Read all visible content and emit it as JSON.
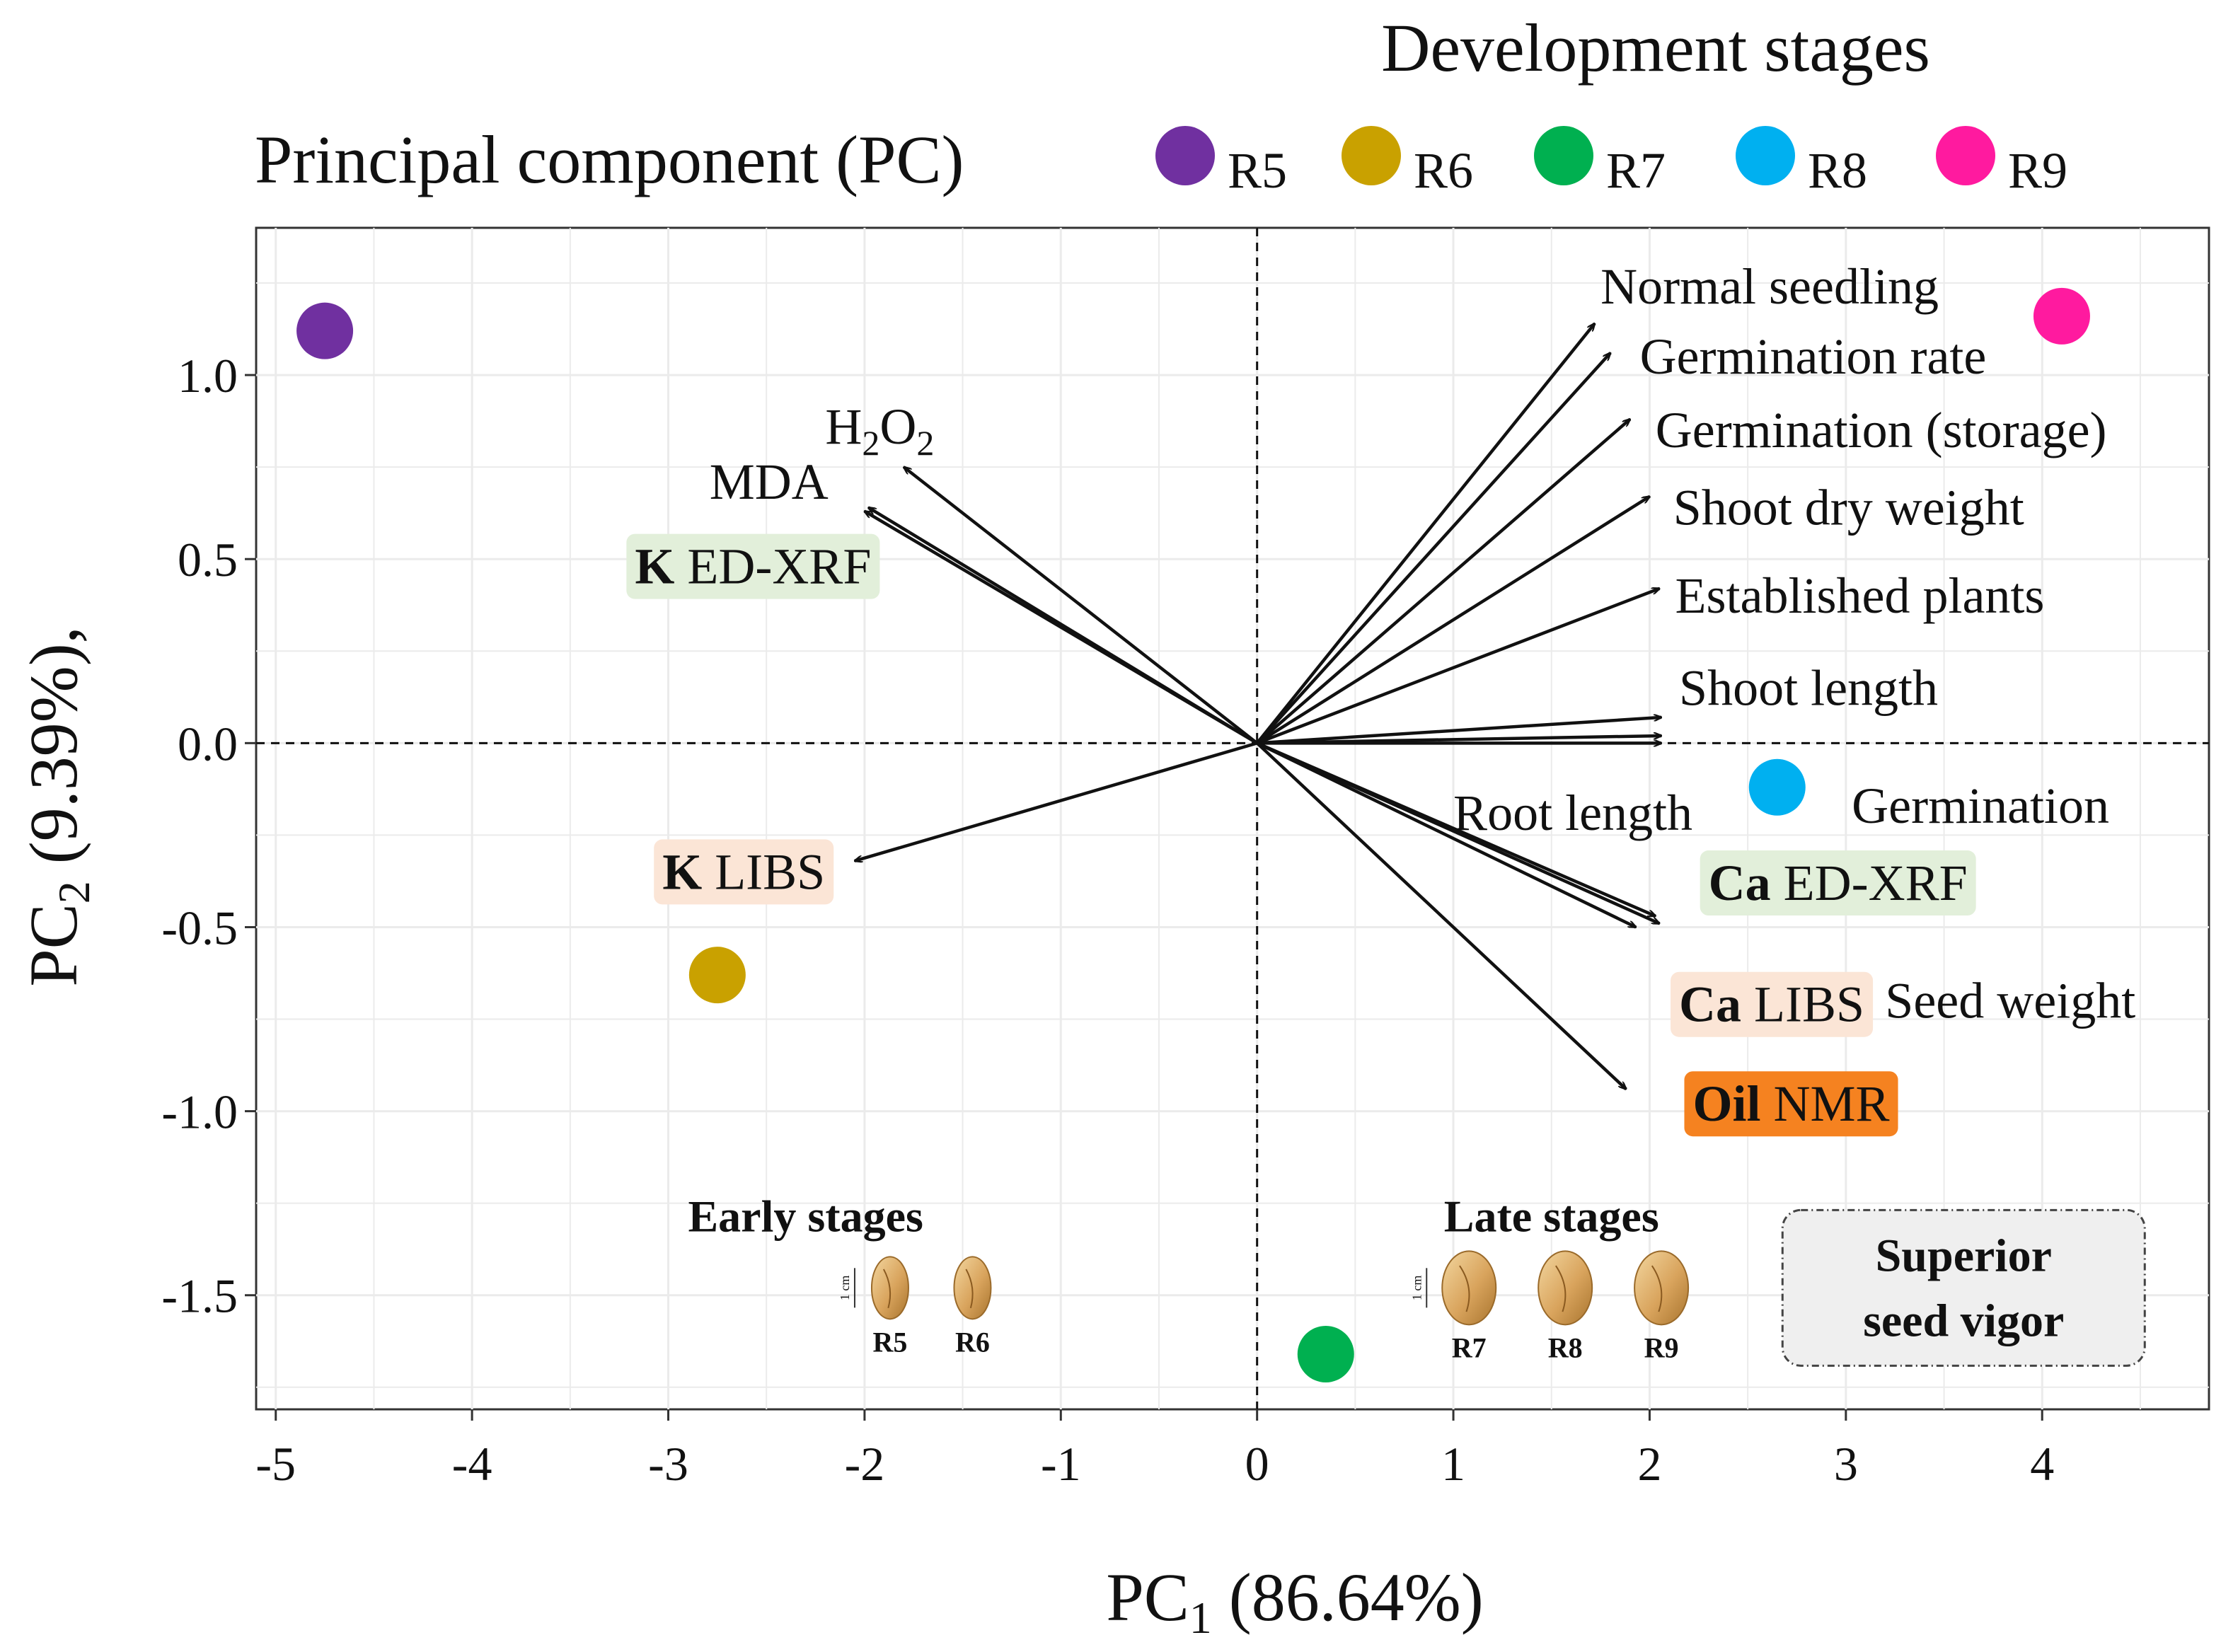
{
  "chart_data": {
    "type": "scatter",
    "subtype": "pca-biplot",
    "title": "Principal component (PC)",
    "legend_title": "Development stages",
    "legend_position": "top-right",
    "xlabel": {
      "main": "PC",
      "sub": "1",
      "rest": " (86.64%)"
    },
    "ylabel": {
      "main": "PC",
      "sub": "2",
      "rest": " (9.39%),"
    },
    "xlim": [
      -5.1,
      4.85
    ],
    "ylim": [
      -1.81,
      1.4
    ],
    "x_ticks": [
      -5,
      -4,
      -3,
      -2,
      -1,
      0,
      1,
      2,
      3,
      4
    ],
    "x_tick_labels": [
      "-5",
      "-4",
      "-3",
      "-2",
      "-1",
      "0",
      "1",
      "2",
      "3",
      "4"
    ],
    "y_ticks": [
      1.0,
      0.5,
      0.0,
      -0.5,
      -1.0,
      -1.5
    ],
    "y_tick_labels": [
      "1.0",
      "0.5",
      "0.0",
      "-0.5",
      "-1.0",
      "-1.5"
    ],
    "grid": true,
    "reference_lines": {
      "x0": true,
      "y0": true,
      "style": "dashed"
    },
    "points": [
      {
        "name": "R5",
        "x": -4.75,
        "y": 1.12,
        "color": "#7030a0"
      },
      {
        "name": "R6",
        "x": -2.75,
        "y": -0.63,
        "color": "#c9a100"
      },
      {
        "name": "R7",
        "x": 0.35,
        "y": -1.66,
        "color": "#00b050"
      },
      {
        "name": "R8",
        "x": 2.65,
        "y": -0.12,
        "color": "#00b0f0"
      },
      {
        "name": "R9",
        "x": 4.1,
        "y": 1.16,
        "color": "#ff1a9f"
      }
    ],
    "vectors": [
      {
        "name": "Normal seedling",
        "x": 1.72,
        "y": 1.14
      },
      {
        "name": "Germination rate",
        "x": 1.8,
        "y": 1.06
      },
      {
        "name": "Germination (storage)",
        "x": 1.9,
        "y": 0.88
      },
      {
        "name": "Shoot dry weight",
        "x": 2.0,
        "y": 0.67
      },
      {
        "name": "Established plants",
        "x": 2.05,
        "y": 0.42
      },
      {
        "name": "Shoot length",
        "x": 2.06,
        "y": 0.07
      },
      {
        "name": "Germination",
        "x": 2.06,
        "y": 0.02
      },
      {
        "name": "Root length",
        "x": 2.06,
        "y": 0.0
      },
      {
        "name": "Ca ED-XRF",
        "x": 2.03,
        "y": -0.47
      },
      {
        "name": "Seed weight",
        "x": 2.05,
        "y": -0.49
      },
      {
        "name": "Ca LIBS",
        "x": 1.93,
        "y": -0.5
      },
      {
        "name": "Oil NMR",
        "x": 1.88,
        "y": -0.94
      },
      {
        "name": "H2O2",
        "x": -1.8,
        "y": 0.75
      },
      {
        "name": "MDA",
        "x": -1.98,
        "y": 0.64
      },
      {
        "name": "K ED-XRF",
        "x": -2.0,
        "y": 0.63
      },
      {
        "name": "K LIBS",
        "x": -2.05,
        "y": -0.32
      }
    ],
    "vector_labels": [
      {
        "text": "Normal seedling",
        "x": 1.75,
        "y": 1.24,
        "anchor": "start"
      },
      {
        "text": "Germination rate",
        "x": 1.95,
        "y": 1.05,
        "anchor": "start"
      },
      {
        "text": "Germination (storage)",
        "x": 2.03,
        "y": 0.85,
        "anchor": "start"
      },
      {
        "text": "Shoot dry weight",
        "x": 2.12,
        "y": 0.64,
        "anchor": "start"
      },
      {
        "text": "Established plants",
        "x": 2.13,
        "y": 0.4,
        "anchor": "start"
      },
      {
        "text": "Shoot length",
        "x": 2.15,
        "y": 0.15,
        "anchor": "start"
      },
      {
        "text": "Root length",
        "x": 1.0,
        "y": -0.19,
        "anchor": "start"
      },
      {
        "text": "Germination",
        "x": 3.03,
        "y": -0.17,
        "anchor": "start"
      },
      {
        "text": "Seed weight",
        "x": 3.2,
        "y": -0.7,
        "anchor": "start"
      },
      {
        "text": "MDA",
        "x": -2.79,
        "y": 0.71,
        "anchor": "start"
      }
    ],
    "h2o2_label": {
      "x": -2.2,
      "y": 0.86,
      "main": "H",
      "sub1": "2",
      "mid": "O",
      "sub2": "2"
    },
    "boxed_labels": [
      {
        "bold": "K",
        "text": " ED-XRF",
        "x": -3.17,
        "y": 0.48,
        "fill": "#e2efda",
        "text_color": "#111"
      },
      {
        "bold": "K",
        "text": " LIBS",
        "x": -3.03,
        "y": -0.35,
        "fill": "#fbe5d6",
        "text_color": "#111"
      },
      {
        "bold": "Ca",
        "text": " ED-XRF",
        "x": 2.3,
        "y": -0.38,
        "fill": "#e2efda",
        "text_color": "#111"
      },
      {
        "bold": "Ca",
        "text": " LIBS",
        "x": 2.15,
        "y": -0.71,
        "fill": "#fbe5d6",
        "text_color": "#111"
      },
      {
        "bold": "Oil",
        "text": " NMR",
        "x": 2.22,
        "y": -0.98,
        "fill": "#f58220",
        "text_color": "#111"
      }
    ],
    "stage_groups": [
      {
        "label": "Early stages",
        "x": -2.3,
        "y": -1.28,
        "seeds": [
          "R5",
          "R6"
        ],
        "seed_x": [
          -1.87,
          -1.45
        ],
        "scale": "1 cm"
      },
      {
        "label": "Late stages",
        "x": 1.5,
        "y": -1.28,
        "seeds": [
          "R7",
          "R8",
          "R9"
        ],
        "seed_x": [
          1.08,
          1.57,
          2.06
        ],
        "scale": "1 cm"
      }
    ],
    "callout": {
      "lines": [
        "Superior",
        "seed vigor"
      ],
      "x": 3.6,
      "y": -1.48
    }
  }
}
